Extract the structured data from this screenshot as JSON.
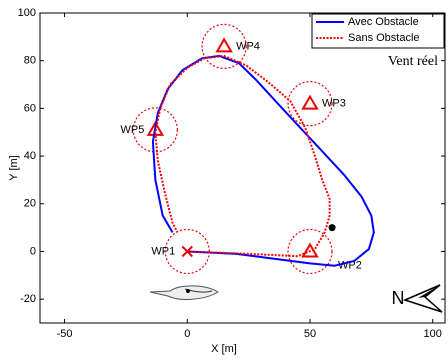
{
  "chart_data": {
    "type": "line",
    "x_label": "X [m]",
    "y_label": "Y [m]",
    "xlim": [
      -60,
      105
    ],
    "ylim": [
      -30,
      100
    ],
    "xticks": [
      -50,
      0,
      50,
      100
    ],
    "yticks": [
      -20,
      0,
      20,
      40,
      60,
      80,
      100
    ],
    "legend": "upper right",
    "annotation": "Vent réel",
    "compass": "N",
    "series": [
      {
        "name": "Avec Obstacle",
        "color": "#0000ff",
        "style": "solid",
        "x": [
          0,
          20,
          35,
          50,
          60,
          68,
          74,
          76,
          75,
          71,
          64,
          55,
          45,
          36,
          28,
          21,
          13,
          6,
          -2,
          -8,
          -12,
          -14,
          -13,
          -10,
          -6
        ],
        "values": [
          0,
          -1,
          -3,
          -5,
          -6,
          -4,
          1,
          8,
          15,
          23,
          32,
          42,
          53,
          63,
          72,
          79,
          82,
          81,
          76,
          68,
          58,
          46,
          30,
          15,
          8
        ]
      },
      {
        "name": "Sans Obstacle",
        "color": "#ff0000",
        "style": "dotted",
        "x": [
          0,
          25,
          45,
          52,
          56,
          58,
          58,
          55,
          52,
          48,
          42,
          33,
          24,
          15,
          7,
          0,
          -7,
          -11,
          -13,
          -12,
          -9,
          -6,
          -4
        ],
        "values": [
          0,
          -1,
          -2,
          1,
          8,
          15,
          22,
          30,
          40,
          52,
          63,
          71,
          78,
          82,
          81,
          77,
          70,
          60,
          50,
          38,
          24,
          12,
          8
        ]
      }
    ],
    "waypoints": [
      {
        "label": "WP1",
        "x": 0,
        "y": 0,
        "marker": "x"
      },
      {
        "label": "WP2",
        "x": 50,
        "y": 0,
        "marker": "triangle"
      },
      {
        "label": "WP3",
        "x": 50,
        "y": 62,
        "marker": "triangle"
      },
      {
        "label": "WP4",
        "x": 15,
        "y": 86,
        "marker": "triangle"
      },
      {
        "label": "WP5",
        "x": -13,
        "y": 51,
        "marker": "triangle"
      }
    ],
    "obstacle": {
      "x": 59,
      "y": 10
    }
  }
}
